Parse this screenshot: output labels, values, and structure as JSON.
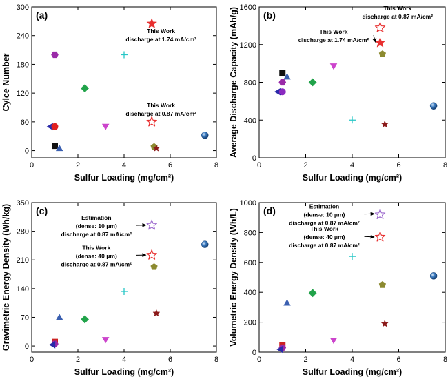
{
  "chart_data": [
    {
      "panel_label": "(a)",
      "type": "scatter",
      "xlabel": "Sulfur Loading (mg/cm²)",
      "ylabel": "Cylce Number",
      "xlim": [
        0,
        8
      ],
      "ylim": [
        -15,
        300
      ],
      "xticks": [
        0,
        2,
        4,
        6,
        8
      ],
      "yticks": [
        0,
        60,
        120,
        180,
        240,
        300
      ],
      "points": [
        {
          "x": 1.0,
          "y": 10,
          "shape": "square",
          "color": "#111111",
          "filled": true
        },
        {
          "x": 1.2,
          "y": 5,
          "shape": "triangle",
          "color": "#3a5fb0",
          "filled": true
        },
        {
          "x": 0.8,
          "y": 50,
          "shape": "triangle-left",
          "color": "#2a2aa8",
          "filled": true
        },
        {
          "x": 1.0,
          "y": 50,
          "shape": "circle",
          "color": "#e02020",
          "filled": true
        },
        {
          "x": 1.0,
          "y": 200,
          "shape": "hexagon",
          "color": "#9a2aa8",
          "filled": true
        },
        {
          "x": 2.3,
          "y": 130,
          "shape": "diamond",
          "color": "#21a34a",
          "filled": true
        },
        {
          "x": 3.2,
          "y": 50,
          "shape": "triangle-down",
          "color": "#cc44cc",
          "filled": true
        },
        {
          "x": 4.0,
          "y": 200,
          "shape": "plus",
          "color": "#26c6c6",
          "filled": true
        },
        {
          "x": 5.3,
          "y": 8,
          "shape": "pentagon",
          "color": "#8c8a30",
          "filled": true
        },
        {
          "x": 5.4,
          "y": 5,
          "shape": "star",
          "color": "#8b1a1a",
          "filled": true,
          "size": "small"
        },
        {
          "x": 5.2,
          "y": 265,
          "shape": "star",
          "color": "#e83030",
          "filled": true
        },
        {
          "x": 5.2,
          "y": 60,
          "shape": "star",
          "color": "#e83030",
          "filled": false
        },
        {
          "x": 7.5,
          "y": 32,
          "shape": "sphere",
          "color": "#2f6fb5",
          "filled": true
        }
      ],
      "annotations": [
        {
          "lines": [
            "This Work",
            "discharge at 1.74 mA/cm²"
          ],
          "x": 5.6,
          "y": 245
        },
        {
          "lines": [
            "This Work",
            "discharge at 0.87 mA/cm²"
          ],
          "x": 5.6,
          "y": 90
        }
      ]
    },
    {
      "panel_label": "(b)",
      "type": "scatter",
      "xlabel": "Sulfur Loading (mg/cm²)",
      "ylabel": "Average Discharge Capacity (mAh/g)",
      "xlim": [
        0,
        8
      ],
      "ylim": [
        0,
        1600
      ],
      "xticks": [
        0,
        2,
        4,
        6,
        8
      ],
      "yticks": [
        0,
        400,
        800,
        1200,
        1600
      ],
      "points": [
        {
          "x": 1.0,
          "y": 900,
          "shape": "square",
          "color": "#111111",
          "filled": true
        },
        {
          "x": 1.2,
          "y": 860,
          "shape": "triangle",
          "color": "#3a5fb0",
          "filled": true
        },
        {
          "x": 1.0,
          "y": 800,
          "shape": "hexagon",
          "color": "#9a2aa8",
          "filled": true
        },
        {
          "x": 0.8,
          "y": 700,
          "shape": "triangle-left",
          "color": "#2a2aa8",
          "filled": true
        },
        {
          "x": 1.0,
          "y": 700,
          "shape": "circle",
          "color": "#8a2ac0",
          "filled": true
        },
        {
          "x": 2.3,
          "y": 800,
          "shape": "diamond",
          "color": "#21a34a",
          "filled": true
        },
        {
          "x": 3.2,
          "y": 970,
          "shape": "triangle-down",
          "color": "#cc44cc",
          "filled": true
        },
        {
          "x": 4.0,
          "y": 400,
          "shape": "plus",
          "color": "#26c6c6",
          "filled": true
        },
        {
          "x": 5.2,
          "y": 1380,
          "shape": "star",
          "color": "#e83030",
          "filled": false
        },
        {
          "x": 5.2,
          "y": 1220,
          "shape": "star",
          "color": "#e83030",
          "filled": true
        },
        {
          "x": 5.3,
          "y": 1100,
          "shape": "pentagon",
          "color": "#8c8a30",
          "filled": true
        },
        {
          "x": 5.4,
          "y": 355,
          "shape": "star",
          "color": "#8b1a1a",
          "filled": true,
          "size": "small"
        },
        {
          "x": 7.5,
          "y": 550,
          "shape": "sphere",
          "color": "#2f6fb5",
          "filled": true
        }
      ],
      "annotations": [
        {
          "lines": [
            "This Work",
            "discharge at 0.87 mA/cm²"
          ],
          "x": 5.95,
          "y": 1565
        },
        {
          "lines": [
            "This Work",
            "discharge at 1.74 mA/cm²"
          ],
          "x": 3.2,
          "y": 1315,
          "arrow_to": [
            5.0,
            1225
          ]
        }
      ]
    },
    {
      "panel_label": "(c)",
      "type": "scatter",
      "xlabel": "Sulfur Loading (mg/cm²)",
      "ylabel": "Gravimetric Energy Density (Wh/kg)",
      "xlim": [
        0,
        8
      ],
      "ylim": [
        -15,
        350
      ],
      "xticks": [
        0,
        2,
        4,
        6,
        8
      ],
      "yticks": [
        0,
        70,
        140,
        210,
        280,
        350
      ],
      "points": [
        {
          "x": 1.0,
          "y": 10,
          "shape": "square",
          "color": "#cc2222",
          "filled": true
        },
        {
          "x": 1.0,
          "y": 5,
          "shape": "hexagon",
          "color": "#9a2aa8",
          "filled": true
        },
        {
          "x": 0.9,
          "y": 3,
          "shape": "triangle-left",
          "color": "#2a2aa8",
          "filled": true
        },
        {
          "x": 1.2,
          "y": 70,
          "shape": "triangle",
          "color": "#3a5fb0",
          "filled": true
        },
        {
          "x": 2.3,
          "y": 65,
          "shape": "diamond",
          "color": "#21a34a",
          "filled": true
        },
        {
          "x": 3.2,
          "y": 15,
          "shape": "triangle-down",
          "color": "#cc44cc",
          "filled": true
        },
        {
          "x": 4.0,
          "y": 133,
          "shape": "plus",
          "color": "#26c6c6",
          "filled": true
        },
        {
          "x": 5.2,
          "y": 295,
          "shape": "star",
          "color": "#9a66cc",
          "filled": false
        },
        {
          "x": 5.2,
          "y": 222,
          "shape": "star",
          "color": "#e83030",
          "filled": false
        },
        {
          "x": 5.3,
          "y": 193,
          "shape": "pentagon",
          "color": "#8c8a30",
          "filled": true
        },
        {
          "x": 5.4,
          "y": 80,
          "shape": "star",
          "color": "#8b1a1a",
          "filled": true,
          "size": "small"
        },
        {
          "x": 7.5,
          "y": 248,
          "shape": "sphere",
          "color": "#2f6fb5",
          "filled": true
        }
      ],
      "annotations": [
        {
          "lines": [
            "Estimation",
            "(dense: 10 μm)",
            "discharge at 0.87 mA/cm²"
          ],
          "x": 2.8,
          "y": 308,
          "arrow_to": [
            4.95,
            295
          ]
        },
        {
          "lines": [
            "This Work",
            "(dense: 40 μm)",
            "discharge at 0.87 mA/cm²"
          ],
          "x": 2.8,
          "y": 235,
          "arrow_to": [
            4.95,
            222
          ]
        }
      ]
    },
    {
      "panel_label": "(d)",
      "type": "scatter",
      "xlabel": "Sulfur Loading (mg/cm²)",
      "ylabel": "Volumetric Energy Density (Wh/L)",
      "xlim": [
        0,
        8
      ],
      "ylim": [
        0,
        1000
      ],
      "xticks": [
        0,
        2,
        4,
        6,
        8
      ],
      "yticks": [
        0,
        200,
        400,
        600,
        800,
        1000
      ],
      "points": [
        {
          "x": 1.0,
          "y": 45,
          "shape": "square",
          "color": "#cc2222",
          "filled": true
        },
        {
          "x": 1.0,
          "y": 30,
          "shape": "hexagon",
          "color": "#9a2aa8",
          "filled": true
        },
        {
          "x": 0.9,
          "y": 18,
          "shape": "triangle-left",
          "color": "#2a2aa8",
          "filled": true
        },
        {
          "x": 1.2,
          "y": 330,
          "shape": "triangle",
          "color": "#3a5fb0",
          "filled": true
        },
        {
          "x": 2.3,
          "y": 395,
          "shape": "diamond",
          "color": "#21a34a",
          "filled": true
        },
        {
          "x": 3.2,
          "y": 78,
          "shape": "triangle-down",
          "color": "#cc44cc",
          "filled": true
        },
        {
          "x": 4.0,
          "y": 640,
          "shape": "plus",
          "color": "#26c6c6",
          "filled": true
        },
        {
          "x": 5.2,
          "y": 920,
          "shape": "star",
          "color": "#9a66cc",
          "filled": false
        },
        {
          "x": 5.2,
          "y": 770,
          "shape": "star",
          "color": "#e83030",
          "filled": false
        },
        {
          "x": 5.3,
          "y": 450,
          "shape": "pentagon",
          "color": "#8c8a30",
          "filled": true
        },
        {
          "x": 5.4,
          "y": 190,
          "shape": "star",
          "color": "#8b1a1a",
          "filled": true,
          "size": "small"
        },
        {
          "x": 7.5,
          "y": 510,
          "shape": "sphere",
          "color": "#2f6fb5",
          "filled": true
        }
      ],
      "annotations": [
        {
          "lines": [
            "Estimation",
            "(dense: 10 μm)",
            "discharge at 0.87 mA/cm²"
          ],
          "x": 2.8,
          "y": 960,
          "arrow_to": [
            4.95,
            925
          ]
        },
        {
          "lines": [
            "This Work",
            "(dense: 40 μm)",
            "discharge at 0.87 mA/cm²"
          ],
          "x": 2.8,
          "y": 810,
          "arrow_to": [
            4.95,
            770
          ]
        }
      ]
    }
  ]
}
